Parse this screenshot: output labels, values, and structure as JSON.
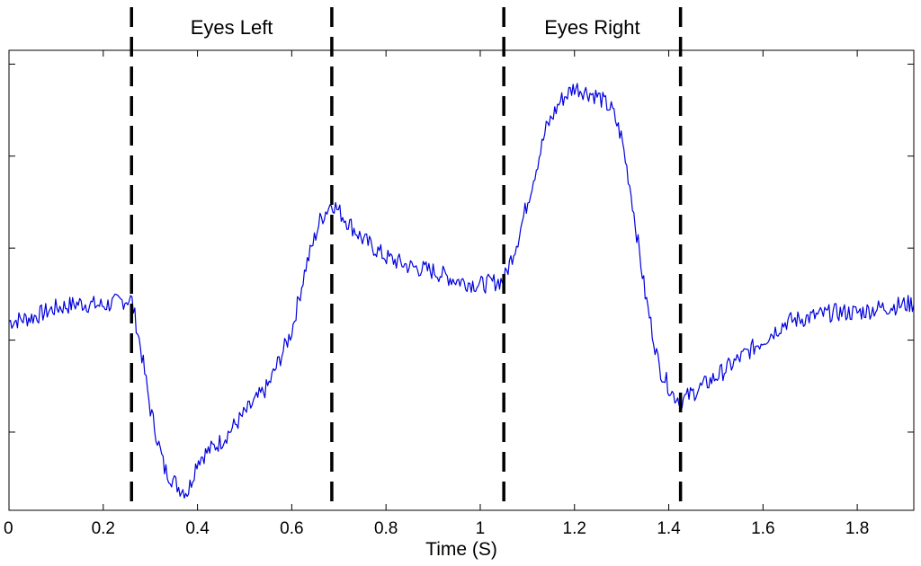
{
  "chart_data": {
    "type": "line",
    "title": "",
    "xlabel": "Time (S)",
    "ylabel": "",
    "xlim": [
      0,
      1.92
    ],
    "ylim": [
      -4.7,
      5.3
    ],
    "x_ticks": [
      "0",
      "0.2",
      "0.4",
      "0.6",
      "0.8",
      "1",
      "1.2",
      "1.4",
      "1.6",
      "1.8"
    ],
    "y_ticks": [
      -3,
      -1,
      1,
      3,
      5
    ],
    "y_tick_labels_shown": false,
    "grid": false,
    "legend": "none",
    "line_color": "#0000dd",
    "marker_color": "#000000",
    "event_markers": [
      {
        "x": 0.26,
        "style": "dashed"
      },
      {
        "x": 0.685,
        "style": "dashed"
      },
      {
        "x": 1.05,
        "style": "dashed"
      },
      {
        "x": 1.425,
        "style": "dashed"
      }
    ],
    "regions": [
      {
        "label": "Eyes Left",
        "x_start": 0.26,
        "x_end": 0.685
      },
      {
        "label": "Eyes Right",
        "x_start": 1.05,
        "x_end": 1.425
      }
    ],
    "series": [
      {
        "anchors": [
          [
            0,
            -0.6
          ],
          [
            0.05,
            -0.5
          ],
          [
            0.1,
            -0.3
          ],
          [
            0.15,
            -0.2
          ],
          [
            0.2,
            -0.25
          ],
          [
            0.26,
            -0.1
          ],
          [
            0.28,
            -1.2
          ],
          [
            0.3,
            -2.5
          ],
          [
            0.33,
            -3.8
          ],
          [
            0.36,
            -4.2
          ],
          [
            0.38,
            -4.3
          ],
          [
            0.4,
            -3.6
          ],
          [
            0.45,
            -3.2
          ],
          [
            0.5,
            -2.6
          ],
          [
            0.55,
            -2.0
          ],
          [
            0.6,
            -0.8
          ],
          [
            0.63,
            0.6
          ],
          [
            0.66,
            1.6
          ],
          [
            0.685,
            2.0
          ],
          [
            0.7,
            1.8
          ],
          [
            0.75,
            1.2
          ],
          [
            0.8,
            0.8
          ],
          [
            0.85,
            0.6
          ],
          [
            0.9,
            0.5
          ],
          [
            0.95,
            0.3
          ],
          [
            1.0,
            0.2
          ],
          [
            1.05,
            0.3
          ],
          [
            1.08,
            1.2
          ],
          [
            1.11,
            2.4
          ],
          [
            1.14,
            3.6
          ],
          [
            1.17,
            4.2
          ],
          [
            1.2,
            4.5
          ],
          [
            1.25,
            4.3
          ],
          [
            1.28,
            4.0
          ],
          [
            1.3,
            3.4
          ],
          [
            1.32,
            2.2
          ],
          [
            1.35,
            0.0
          ],
          [
            1.38,
            -1.6
          ],
          [
            1.41,
            -2.2
          ],
          [
            1.43,
            -2.3
          ],
          [
            1.5,
            -1.8
          ],
          [
            1.55,
            -1.4
          ],
          [
            1.6,
            -1.0
          ],
          [
            1.65,
            -0.6
          ],
          [
            1.7,
            -0.5
          ],
          [
            1.75,
            -0.4
          ],
          [
            1.8,
            -0.4
          ],
          [
            1.85,
            -0.3
          ],
          [
            1.92,
            -0.2
          ]
        ],
        "noise": 0.2,
        "sample_step": 0.003
      }
    ]
  }
}
